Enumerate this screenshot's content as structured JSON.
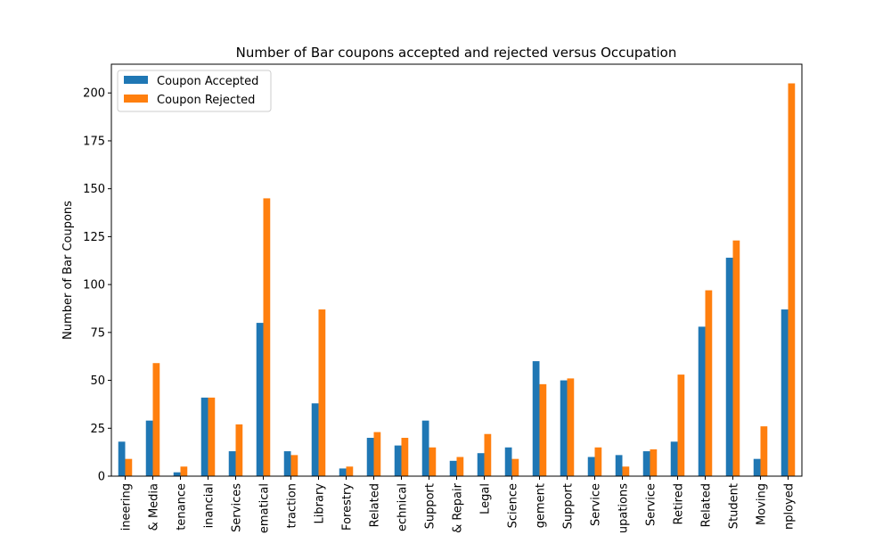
{
  "chart_data": {
    "type": "bar",
    "title": "Number of Bar coupons accepted and rejected versus Occupation",
    "xlabel": "",
    "ylabel": "Number of Bar Coupons",
    "ylim": [
      0,
      215
    ],
    "yticks": [
      0,
      25,
      50,
      75,
      100,
      125,
      150,
      175,
      200
    ],
    "grid": false,
    "legend_position": "top-left",
    "categories": [
      "ineering",
      "& Media",
      "tenance",
      "inancial",
      "Services",
      "ematical",
      "traction",
      "Library",
      "Forestry",
      "Related",
      "echnical",
      "Support",
      "& Repair",
      "Legal",
      "Science",
      "gement",
      "Support",
      "Service",
      "upations",
      "Service",
      "Retired",
      "Related",
      "Student",
      "Moving",
      "nployed"
    ],
    "series": [
      {
        "name": "Coupon Accepted",
        "color": "#1f77b4",
        "values": [
          18,
          29,
          2,
          41,
          13,
          80,
          13,
          38,
          4,
          20,
          16,
          29,
          8,
          12,
          15,
          60,
          50,
          10,
          11,
          13,
          18,
          78,
          114,
          9,
          87
        ]
      },
      {
        "name": "Coupon Rejected",
        "color": "#ff7f0e",
        "values": [
          9,
          59,
          5,
          41,
          27,
          145,
          11,
          87,
          5,
          23,
          20,
          15,
          10,
          22,
          9,
          48,
          51,
          15,
          5,
          14,
          53,
          97,
          123,
          26,
          205
        ]
      }
    ]
  }
}
